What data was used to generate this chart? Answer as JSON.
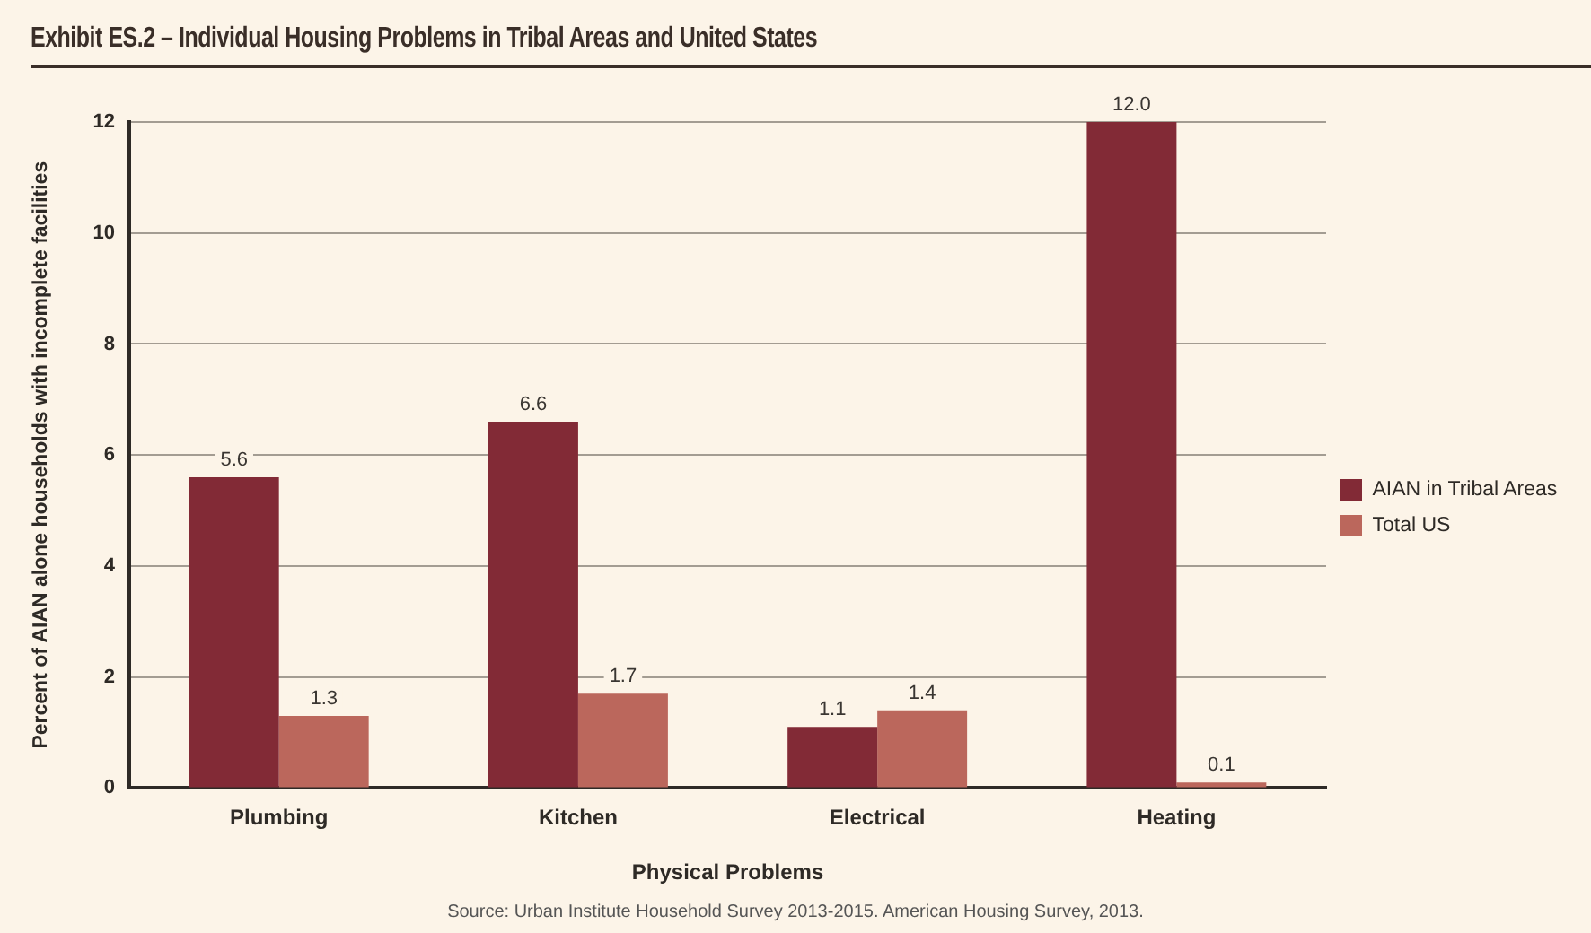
{
  "chart_data": {
    "type": "bar",
    "title": "Exhibit ES.2 – Individual Housing Problems in Tribal Areas and United States",
    "xlabel": "Physical Problems",
    "ylabel": "Percent of AIAN alone households with incomplete facilities",
    "annotations": [
      "Source: Urban Institute Household Survey 2013-2015. American Housing Survey, 2013."
    ],
    "categories": [
      "Plumbing",
      "Kitchen",
      "Electrical",
      "Heating"
    ],
    "series": [
      {
        "name": "AIAN in Tribal Areas",
        "color": "#822a36",
        "values": [
          5.6,
          6.6,
          1.1,
          12.0
        ],
        "value_labels": [
          "5.6",
          "6.6",
          "1.1",
          "12.0"
        ]
      },
      {
        "name": "Total US",
        "color": "#bb675c",
        "values": [
          1.3,
          1.7,
          1.4,
          0.1
        ],
        "value_labels": [
          "1.3",
          "1.7",
          "1.4",
          "0.1"
        ]
      }
    ],
    "ylim": [
      0,
      12
    ],
    "yticks": [
      0,
      2,
      4,
      6,
      8,
      10,
      12
    ],
    "grid": "y",
    "legend": "right"
  }
}
